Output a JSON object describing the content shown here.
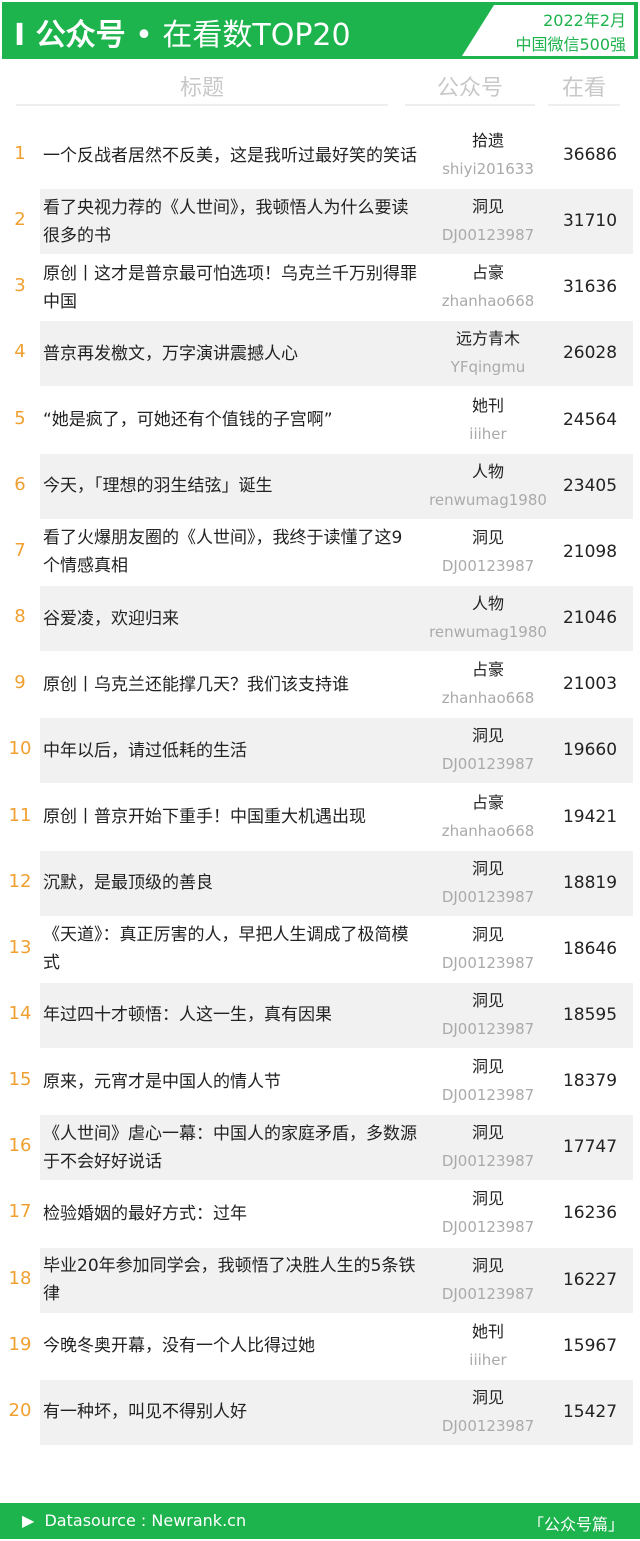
{
  "header": {
    "title_bold": "I 公众号",
    "dot": "•",
    "title_rest": "在看数TOP20",
    "date": "2022年2月",
    "scope": "中国微信500强",
    "accent": "#1db34d"
  },
  "columns": {
    "title": "标题",
    "account": "公众号",
    "views": "在看"
  },
  "rows": [
    {
      "rank": "1",
      "title": "一个反战者居然不反美，这是我听过最好笑的笑话",
      "name": "拾遗",
      "id": "shiyi201633",
      "views": "36686"
    },
    {
      "rank": "2",
      "title": "看了央视力荐的《人世间》，我顿悟人为什么要读很多的书",
      "name": "洞见",
      "id": "DJ00123987",
      "views": "31710"
    },
    {
      "rank": "3",
      "title": "原创丨这才是普京最可怕选项！乌克兰千万别得罪中国",
      "name": "占豪",
      "id": "zhanhao668",
      "views": "31636"
    },
    {
      "rank": "4",
      "title": "普京再发檄文，万字演讲震撼人心",
      "name": "远方青木",
      "id": "YFqingmu",
      "views": "26028"
    },
    {
      "rank": "5",
      "title": "“她是疯了，可她还有个值钱的子宫啊”",
      "name": "她刊",
      "id": "iiiher",
      "views": "24564"
    },
    {
      "rank": "6",
      "title": "今天，「理想的羽生结弦」诞生",
      "name": "人物",
      "id": "renwumag1980",
      "views": "23405"
    },
    {
      "rank": "7",
      "title": "看了火爆朋友圈的《人世间》，我终于读懂了这9个情感真相",
      "name": "洞见",
      "id": "DJ00123987",
      "views": "21098"
    },
    {
      "rank": "8",
      "title": "谷爱凌，欢迎归来",
      "name": "人物",
      "id": "renwumag1980",
      "views": "21046"
    },
    {
      "rank": "9",
      "title": "原创丨乌克兰还能撑几天？我们该支持谁",
      "name": "占豪",
      "id": "zhanhao668",
      "views": "21003"
    },
    {
      "rank": "10",
      "title": "中年以后，请过低耗的生活",
      "name": "洞见",
      "id": "DJ00123987",
      "views": "19660"
    },
    {
      "rank": "11",
      "title": "原创丨普京开始下重手！中国重大机遇出现",
      "name": "占豪",
      "id": "zhanhao668",
      "views": "19421"
    },
    {
      "rank": "12",
      "title": "沉默，是最顶级的善良",
      "name": "洞见",
      "id": "DJ00123987",
      "views": "18819"
    },
    {
      "rank": "13",
      "title": "《天道》：真正厉害的人，早把人生调成了极简模式",
      "name": "洞见",
      "id": "DJ00123987",
      "views": "18646"
    },
    {
      "rank": "14",
      "title": "年过四十才顿悟：人这一生，真有因果",
      "name": "洞见",
      "id": "DJ00123987",
      "views": "18595"
    },
    {
      "rank": "15",
      "title": "原来，元宵才是中国人的情人节",
      "name": "洞见",
      "id": "DJ00123987",
      "views": "18379"
    },
    {
      "rank": "16",
      "title": "《人世间》虐心一幕：中国人的家庭矛盾，多数源于不会好好说话",
      "name": "洞见",
      "id": "DJ00123987",
      "views": "17747"
    },
    {
      "rank": "17",
      "title": "检验婚姻的最好方式：过年",
      "name": "洞见",
      "id": "DJ00123987",
      "views": "16236"
    },
    {
      "rank": "18",
      "title": "毕业20年参加同学会，我顿悟了决胜人生的5条铁律",
      "name": "洞见",
      "id": "DJ00123987",
      "views": "16227"
    },
    {
      "rank": "19",
      "title": "今晚冬奥开幕，没有一个人比得过她",
      "name": "她刊",
      "id": "iiiher",
      "views": "15967"
    },
    {
      "rank": "20",
      "title": "有一种坏，叫见不得别人好",
      "name": "洞见",
      "id": "DJ00123987",
      "views": "15427"
    }
  ],
  "footer": {
    "icon": "play-triangle-icon",
    "source": "Datasource : Newrank.cn",
    "tag": "「公众号篇」"
  }
}
